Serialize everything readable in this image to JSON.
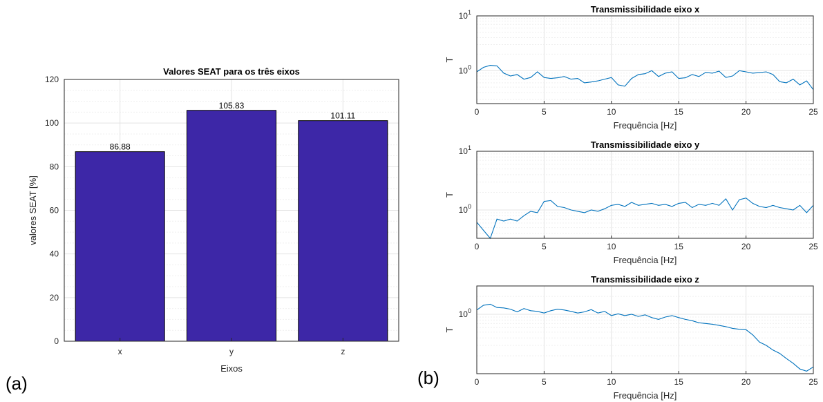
{
  "panel_labels": {
    "a": "(a)",
    "b": "(b)"
  },
  "colors": {
    "bar": "#3d27a7",
    "line": "#0072bd",
    "grid": "#e3e3e3",
    "axis": "#262626"
  },
  "chart_data": [
    {
      "id": "seat",
      "type": "bar",
      "title": "Valores SEAT para os três eixos",
      "xlabel": "Eixos",
      "ylabel": "valores SEAT [%]",
      "categories": [
        "x",
        "y",
        "z"
      ],
      "values": [
        86.88,
        105.83,
        101.11
      ],
      "data_labels": [
        "86.88",
        "105.83",
        "101.11"
      ],
      "ylim": [
        0,
        120
      ],
      "yticks": [
        0,
        20,
        40,
        60,
        80,
        100,
        120
      ],
      "grid": true
    },
    {
      "id": "tx",
      "type": "line",
      "title": "Transmissibilidade eixo x",
      "xlabel": "Frequência [Hz]",
      "ylabel": "T",
      "yscale": "log",
      "xlim": [
        0,
        25
      ],
      "ylim": [
        0.25,
        10
      ],
      "xticks": [
        0,
        5,
        10,
        15,
        20,
        25
      ],
      "yticks": [
        {
          "value": 1,
          "base": "10",
          "exp": "0"
        },
        {
          "value": 10,
          "base": "10",
          "exp": "1"
        }
      ],
      "grid": true,
      "x": [
        0,
        0.5,
        1,
        1.5,
        2,
        2.5,
        3,
        3.5,
        4,
        4.5,
        5,
        5.5,
        6,
        6.5,
        7,
        7.5,
        8,
        8.5,
        9,
        9.5,
        10,
        10.5,
        11,
        11.5,
        12,
        12.5,
        13,
        13.5,
        14,
        14.5,
        15,
        15.5,
        16,
        16.5,
        17,
        17.5,
        18,
        18.5,
        19,
        19.5,
        20,
        20.5,
        21,
        21.5,
        22,
        22.5,
        23,
        23.5,
        24,
        24.5,
        25
      ],
      "y": [
        0.95,
        1.15,
        1.25,
        1.22,
        0.9,
        0.8,
        0.85,
        0.7,
        0.75,
        0.95,
        0.75,
        0.72,
        0.74,
        0.78,
        0.7,
        0.72,
        0.6,
        0.62,
        0.65,
        0.7,
        0.75,
        0.55,
        0.52,
        0.72,
        0.85,
        0.88,
        1.0,
        0.78,
        0.9,
        0.95,
        0.72,
        0.74,
        0.85,
        0.78,
        0.93,
        0.9,
        0.98,
        0.75,
        0.8,
        1.0,
        0.95,
        0.9,
        0.92,
        0.95,
        0.85,
        0.63,
        0.6,
        0.7,
        0.55,
        0.65,
        0.45
      ]
    },
    {
      "id": "ty",
      "type": "line",
      "title": "Transmissibilidade eixo y",
      "xlabel": "Frequência [Hz]",
      "ylabel": "T",
      "yscale": "log",
      "xlim": [
        0,
        25
      ],
      "ylim": [
        0.33,
        10
      ],
      "xticks": [
        0,
        5,
        10,
        15,
        20,
        25
      ],
      "yticks": [
        {
          "value": 1,
          "base": "10",
          "exp": "0"
        },
        {
          "value": 10,
          "base": "10",
          "exp": "1"
        }
      ],
      "grid": true,
      "x": [
        0,
        0.5,
        1,
        1.5,
        2,
        2.5,
        3,
        3.5,
        4,
        4.5,
        5,
        5.5,
        6,
        6.5,
        7,
        7.5,
        8,
        8.5,
        9,
        9.5,
        10,
        10.5,
        11,
        11.5,
        12,
        12.5,
        13,
        13.5,
        14,
        14.5,
        15,
        15.5,
        16,
        16.5,
        17,
        17.5,
        18,
        18.5,
        19,
        19.5,
        20,
        20.5,
        21,
        21.5,
        22,
        22.5,
        23,
        23.5,
        24,
        24.5,
        25
      ],
      "y": [
        0.62,
        0.45,
        0.33,
        0.7,
        0.65,
        0.7,
        0.65,
        0.8,
        0.95,
        0.9,
        1.4,
        1.45,
        1.15,
        1.1,
        1.0,
        0.95,
        0.9,
        1.0,
        0.95,
        1.05,
        1.2,
        1.25,
        1.15,
        1.35,
        1.2,
        1.25,
        1.3,
        1.2,
        1.25,
        1.15,
        1.3,
        1.35,
        1.1,
        1.25,
        1.2,
        1.3,
        1.2,
        1.55,
        1.0,
        1.5,
        1.6,
        1.3,
        1.15,
        1.1,
        1.2,
        1.1,
        1.05,
        1.0,
        1.2,
        0.9,
        1.2
      ]
    },
    {
      "id": "tz",
      "type": "line",
      "title": "Transmissibilidade eixo z",
      "xlabel": "Frequência [Hz]",
      "ylabel": "T",
      "yscale": "log",
      "xlim": [
        0,
        25
      ],
      "ylim": [
        0.1,
        3
      ],
      "xticks": [
        0,
        5,
        10,
        15,
        20,
        25
      ],
      "yticks": [
        {
          "value": 1,
          "base": "10",
          "exp": "0"
        }
      ],
      "grid": true,
      "x": [
        0,
        0.5,
        1,
        1.5,
        2,
        2.5,
        3,
        3.5,
        4,
        4.5,
        5,
        5.5,
        6,
        6.5,
        7,
        7.5,
        8,
        8.5,
        9,
        9.5,
        10,
        10.5,
        11,
        11.5,
        12,
        12.5,
        13,
        13.5,
        14,
        14.5,
        15,
        15.5,
        16,
        16.5,
        17,
        17.5,
        18,
        18.5,
        19,
        19.5,
        20,
        20.5,
        21,
        21.5,
        22,
        22.5,
        23,
        23.5,
        24,
        24.5,
        25
      ],
      "y": [
        1.18,
        1.42,
        1.48,
        1.3,
        1.28,
        1.22,
        1.1,
        1.25,
        1.15,
        1.12,
        1.05,
        1.15,
        1.22,
        1.18,
        1.12,
        1.05,
        1.1,
        1.2,
        1.05,
        1.12,
        0.95,
        1.02,
        0.95,
        1.0,
        0.92,
        0.98,
        0.88,
        0.82,
        0.9,
        0.95,
        0.88,
        0.82,
        0.78,
        0.72,
        0.7,
        0.68,
        0.65,
        0.62,
        0.58,
        0.56,
        0.55,
        0.45,
        0.34,
        0.3,
        0.25,
        0.22,
        0.18,
        0.15,
        0.12,
        0.11,
        0.13
      ]
    }
  ]
}
